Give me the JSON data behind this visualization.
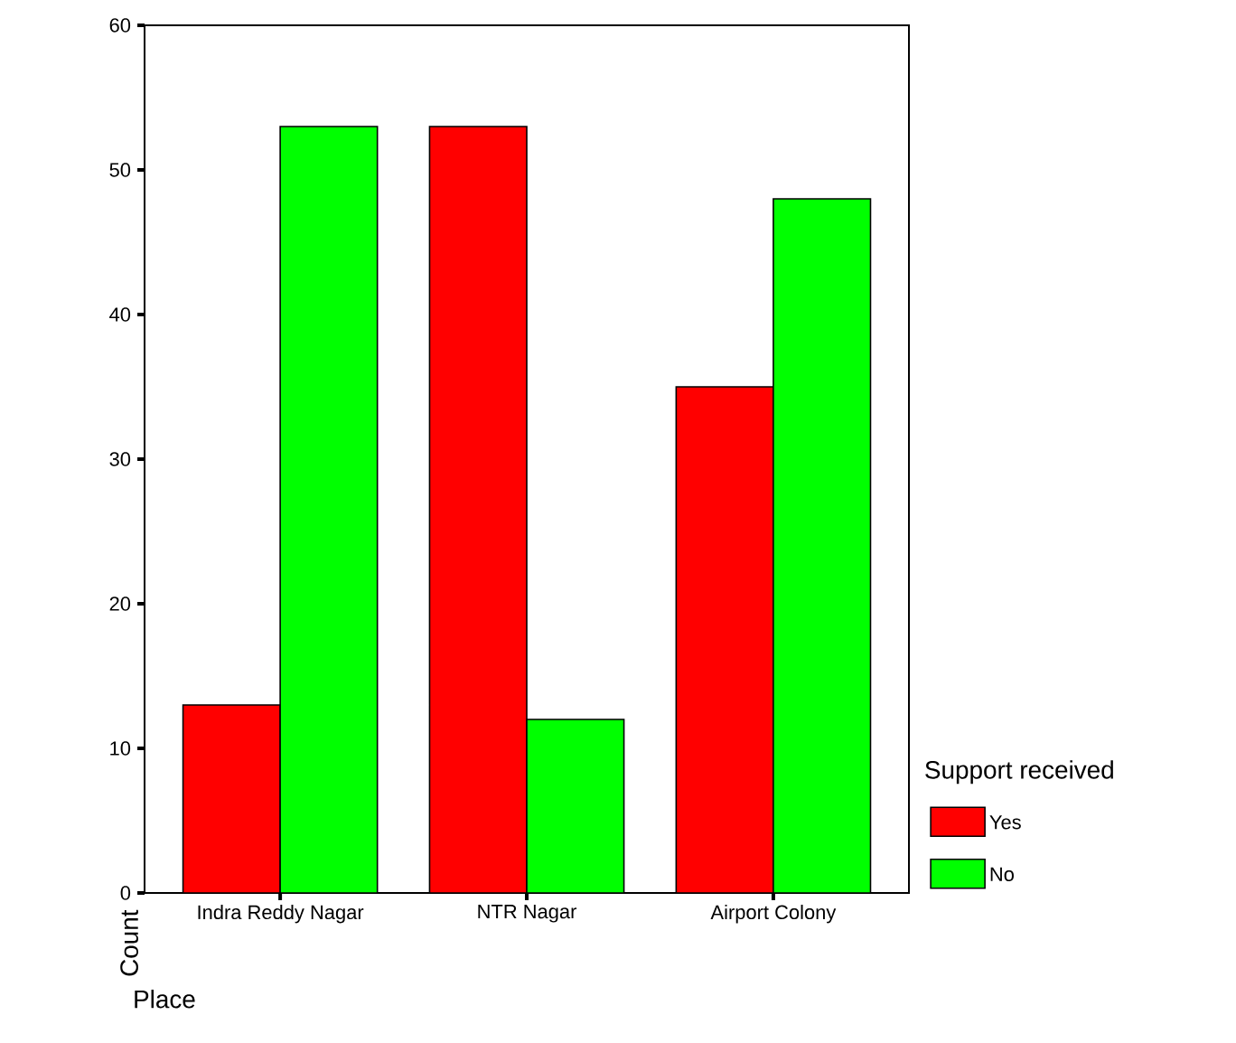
{
  "chart_data": {
    "type": "bar",
    "xlabel": "Place",
    "ylabel": "Count",
    "legend_title": "Support received",
    "categories": [
      "Indra Reddy Nagar",
      "NTR Nagar",
      "Airport Colony"
    ],
    "series": [
      {
        "name": "Yes",
        "color": "#ff0000",
        "values": [
          13,
          53,
          35
        ]
      },
      {
        "name": "No",
        "color": "#00ff00",
        "values": [
          53,
          12,
          48
        ]
      }
    ],
    "ylim": [
      0,
      60
    ],
    "yticks": [
      0,
      10,
      20,
      30,
      40,
      50,
      60
    ],
    "grid": false,
    "legend": "right"
  }
}
